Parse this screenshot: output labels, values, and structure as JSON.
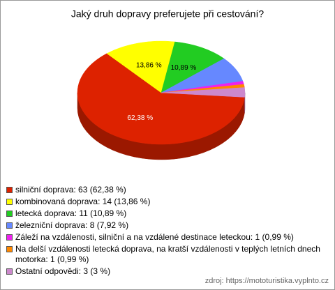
{
  "chart_data": {
    "type": "pie",
    "title": "Jaký druh dopravy preferujete při cestování?",
    "categories": [
      "silniční doprava: 63 (62,38 %)",
      "kombinovaná doprava: 14 (13,86 %)",
      "letecká doprava: 11 (10,89 %)",
      "železniční doprava: 8 (7,92 %)",
      "Záleží na vzdálenosti, silniční a na vzdálené destinace leteckou: 1 (0,99 %)",
      "Na delší vzdálenosti letecká doprava, na kratší vzdálenosti v teplých letních dnech motorka: 1 (0,99 %)",
      "Ostatní odpovědi: 3 (3 %)"
    ],
    "values": [
      62.38,
      13.86,
      10.89,
      7.92,
      0.99,
      0.99,
      3
    ],
    "value_labels": [
      "62,38 %",
      "13,86 %",
      "10,89 %",
      null,
      null,
      null,
      null
    ],
    "colors": [
      "#dd2200",
      "#ffff00",
      "#22cc22",
      "#6688ff",
      "#ee22ee",
      "#ff8800",
      "#cc88cc"
    ],
    "source": "zdroj: https://mototuristika.vyplnto.cz"
  }
}
